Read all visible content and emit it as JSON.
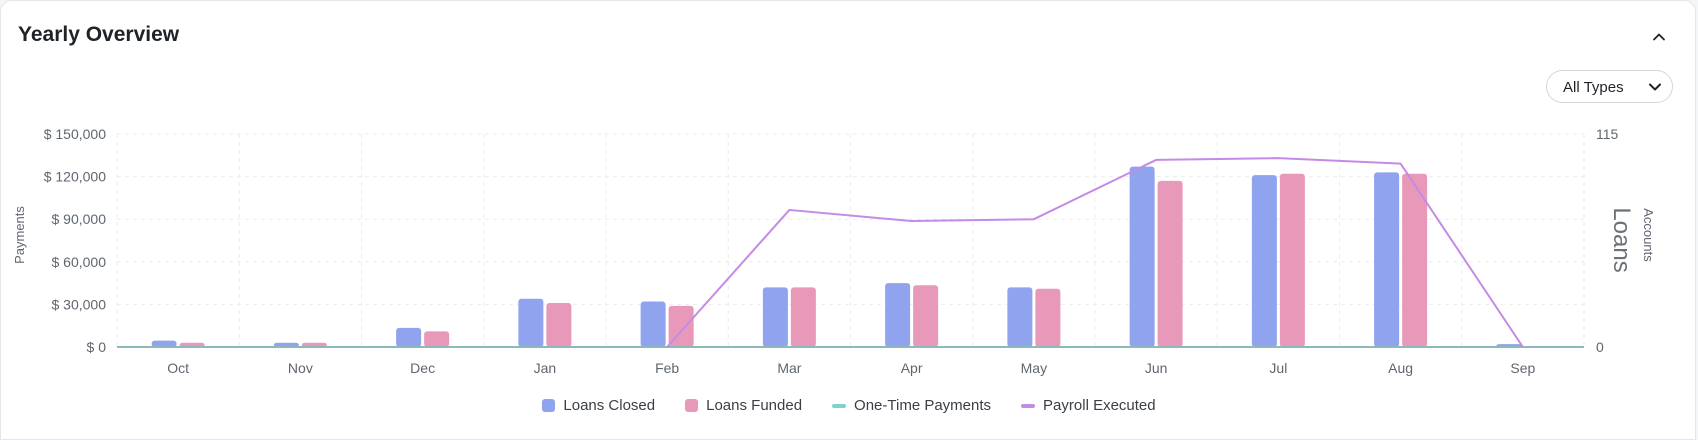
{
  "header": {
    "title": "Yearly Overview"
  },
  "filter": {
    "selected": "All Types"
  },
  "icons": {
    "collapse": "chevron-up-icon",
    "dropdown": "chevron-down-icon"
  },
  "colors": {
    "loans_closed": "#8fa3ee",
    "loans_funded": "#e899b9",
    "one_time_payments": "#7dd3cc",
    "payroll_executed": "#c58ae6"
  },
  "chart_data": {
    "type": "bar",
    "categories": [
      "Oct",
      "Nov",
      "Dec",
      "Jan",
      "Feb",
      "Mar",
      "Apr",
      "May",
      "Jun",
      "Jul",
      "Aug",
      "Sep"
    ],
    "left_axis": {
      "label": "Payments",
      "ylim": [
        0,
        150000
      ],
      "ticks": [
        0,
        30000,
        60000,
        90000,
        120000,
        150000
      ],
      "tick_labels": [
        "$ 0",
        "$ 30,000",
        "$ 60,000",
        "$ 90,000",
        "$ 120,000",
        "$ 150,000"
      ]
    },
    "right_axis": {
      "label_large": "Loans",
      "label_small": "Accounts",
      "ylim": [
        0,
        115
      ],
      "ticks": [
        0,
        115
      ],
      "tick_labels": [
        "0",
        "115"
      ]
    },
    "series": [
      {
        "name": "Loans Closed",
        "kind": "bar",
        "axis": "left",
        "values": [
          4500,
          3000,
          13500,
          34000,
          32000,
          42000,
          45000,
          42000,
          127000,
          121000,
          123000,
          2000
        ]
      },
      {
        "name": "Loans Funded",
        "kind": "bar",
        "axis": "left",
        "values": [
          3000,
          3000,
          11000,
          31000,
          29000,
          42000,
          43500,
          41000,
          117000,
          122000,
          122000,
          0
        ]
      },
      {
        "name": "One-Time Payments",
        "kind": "line",
        "axis": "right",
        "values": [
          0,
          0,
          0,
          0,
          0,
          0,
          0,
          0,
          0,
          0,
          0,
          0
        ]
      },
      {
        "name": "Payroll Executed",
        "kind": "line",
        "axis": "right",
        "values": [
          null,
          null,
          null,
          null,
          0,
          74,
          68,
          69,
          101,
          102,
          99,
          0
        ]
      }
    ],
    "grid": true,
    "legend_position": "bottom"
  }
}
